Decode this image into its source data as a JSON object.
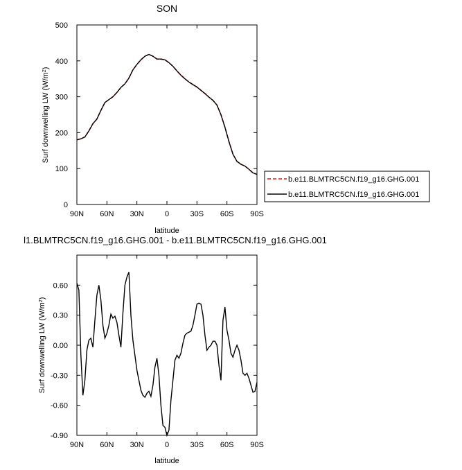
{
  "chart_data": [
    {
      "type": "line",
      "title": "SON",
      "xlabel": "latitude",
      "ylabel": "Surf downwelling LW (W/m",
      "ylabel_sup": "2",
      "ylabel_tail": ")",
      "xlim": [
        90,
        -90
      ],
      "ylim": [
        0,
        500
      ],
      "x_ticks": [
        90,
        60,
        30,
        0,
        -30,
        -60,
        -90
      ],
      "x_tick_labels": [
        "90N",
        "60N",
        "30N",
        "0",
        "30S",
        "60S",
        "90S"
      ],
      "y_ticks": [
        0,
        100,
        200,
        300,
        400,
        500
      ],
      "y_tick_labels": [
        "0",
        "100",
        "200",
        "300",
        "400",
        "500"
      ],
      "legend_position": "right",
      "legend": [
        {
          "label": "b.e11.BLMTRC5CN.f19_g16.GHG.001",
          "color": "#e41a1c",
          "style": "dashed"
        },
        {
          "label": "b.e11.BLMTRC5CN.f19_g16.GHG.001",
          "color": "#000000",
          "style": "solid"
        }
      ],
      "series": [
        {
          "color": "#e41a1c",
          "style": "dashed",
          "x": [
            90,
            86,
            82,
            78,
            74,
            70,
            66,
            62,
            58,
            54,
            50,
            46,
            42,
            38,
            34,
            30,
            26,
            22,
            18,
            14,
            10,
            6,
            2,
            -2,
            -6,
            -10,
            -14,
            -18,
            -22,
            -26,
            -30,
            -34,
            -38,
            -42,
            -46,
            -50,
            -54,
            -58,
            -62,
            -66,
            -70,
            -74,
            -78,
            -82,
            -86,
            -90
          ],
          "y": [
            180,
            183,
            188,
            205,
            225,
            238,
            262,
            284,
            292,
            300,
            312,
            326,
            336,
            352,
            375,
            390,
            403,
            413,
            418,
            413,
            405,
            405,
            403,
            395,
            385,
            372,
            360,
            350,
            341,
            334,
            327,
            318,
            309,
            299,
            290,
            277,
            250,
            215,
            175,
            140,
            120,
            112,
            107,
            98,
            88,
            84
          ]
        },
        {
          "color": "#000000",
          "style": "solid",
          "x": [
            90,
            86,
            82,
            78,
            74,
            70,
            66,
            62,
            58,
            54,
            50,
            46,
            42,
            38,
            34,
            30,
            26,
            22,
            18,
            14,
            10,
            6,
            2,
            -2,
            -6,
            -10,
            -14,
            -18,
            -22,
            -26,
            -30,
            -34,
            -38,
            -42,
            -46,
            -50,
            -54,
            -58,
            -62,
            -66,
            -70,
            -74,
            -78,
            -82,
            -86,
            -90
          ],
          "y": [
            180,
            183,
            188,
            205,
            225,
            238,
            262,
            284,
            292,
            300,
            312,
            326,
            336,
            352,
            375,
            390,
            403,
            413,
            418,
            413,
            405,
            405,
            403,
            395,
            385,
            372,
            360,
            350,
            341,
            334,
            327,
            318,
            309,
            299,
            290,
            277,
            250,
            215,
            175,
            140,
            120,
            112,
            107,
            98,
            88,
            84
          ]
        }
      ]
    },
    {
      "type": "line",
      "title": "l1.BLMTRC5CN.f19_g16.GHG.001 - b.e11.BLMTRC5CN.f19_g16.GHG.001",
      "xlabel": "latitude",
      "ylabel": "Surf downwelling LW (W/m",
      "ylabel_sup": "2",
      "ylabel_tail": ")",
      "xlim": [
        90,
        -90
      ],
      "ylim": [
        -0.9,
        0.9
      ],
      "x_ticks": [
        90,
        60,
        30,
        0,
        -30,
        -60,
        -90
      ],
      "x_tick_labels": [
        "90N",
        "60N",
        "30N",
        "0",
        "30S",
        "60S",
        "90S"
      ],
      "y_ticks": [
        -0.9,
        -0.6,
        -0.3,
        0.0,
        0.3,
        0.6
      ],
      "y_tick_labels": [
        "-0.90",
        "-0.60",
        "-0.30",
        "0.00",
        "0.30",
        "0.60"
      ],
      "series": [
        {
          "color": "#000000",
          "style": "solid",
          "x": [
            90,
            88,
            86,
            84,
            82,
            80,
            78,
            76,
            74,
            72,
            70,
            68,
            66,
            64,
            62,
            60,
            58,
            56,
            54,
            52,
            50,
            48,
            46,
            44,
            42,
            40,
            38,
            36,
            34,
            32,
            30,
            28,
            26,
            24,
            22,
            20,
            18,
            16,
            14,
            12,
            10,
            8,
            6,
            4,
            2,
            0,
            -2,
            -4,
            -6,
            -8,
            -10,
            -12,
            -14,
            -16,
            -18,
            -20,
            -22,
            -24,
            -26,
            -28,
            -30,
            -32,
            -34,
            -36,
            -38,
            -40,
            -42,
            -44,
            -46,
            -48,
            -50,
            -52,
            -54,
            -56,
            -58,
            -60,
            -62,
            -64,
            -66,
            -68,
            -70,
            -72,
            -74,
            -76,
            -78,
            -80,
            -82,
            -84,
            -86,
            -88,
            -90
          ],
          "y": [
            0.62,
            0.55,
            -0.1,
            -0.5,
            -0.35,
            -0.05,
            0.05,
            0.07,
            -0.02,
            0.25,
            0.5,
            0.6,
            0.45,
            0.2,
            0.07,
            0.12,
            0.2,
            0.31,
            0.27,
            0.29,
            0.23,
            0.1,
            -0.02,
            0.32,
            0.6,
            0.68,
            0.73,
            0.3,
            0.05,
            -0.1,
            -0.25,
            -0.35,
            -0.45,
            -0.5,
            -0.52,
            -0.48,
            -0.46,
            -0.51,
            -0.4,
            -0.22,
            -0.13,
            -0.3,
            -0.6,
            -0.8,
            -0.82,
            -0.9,
            -0.85,
            -0.55,
            -0.35,
            -0.15,
            -0.1,
            -0.13,
            -0.08,
            0.02,
            0.1,
            0.12,
            0.13,
            0.14,
            0.2,
            0.3,
            0.41,
            0.42,
            0.41,
            0.3,
            0.1,
            -0.05,
            -0.02,
            0.0,
            0.04,
            0.04,
            0.0,
            -0.2,
            -0.35,
            0.25,
            0.38,
            0.15,
            0.05,
            -0.08,
            -0.12,
            -0.05,
            0.0,
            -0.05,
            -0.15,
            -0.28,
            -0.3,
            -0.28,
            -0.33,
            -0.4,
            -0.47,
            -0.46,
            -0.37
          ]
        }
      ]
    }
  ]
}
